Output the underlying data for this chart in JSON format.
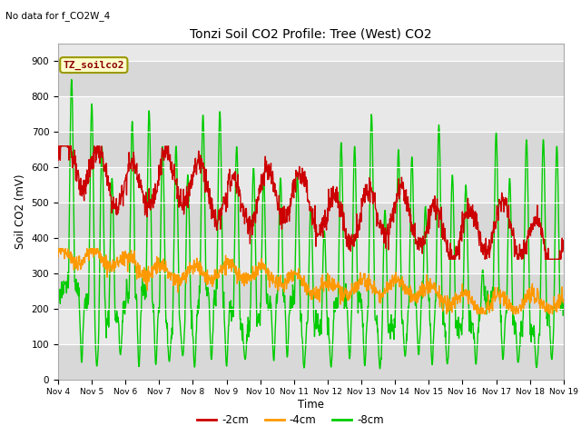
{
  "title": "Tonzi Soil CO2 Profile: Tree (West) CO2",
  "subtitle": "No data for f_CO2W_4",
  "ylabel": "Soil CO2 (mV)",
  "xlabel": "Time",
  "legend_label": "TZ_soilco2",
  "series_labels": [
    "-2cm",
    "-4cm",
    "-8cm"
  ],
  "series_colors": [
    "#cc0000",
    "#ff9900",
    "#00cc00"
  ],
  "ylim": [
    0,
    950
  ],
  "yticks": [
    0,
    100,
    200,
    300,
    400,
    500,
    600,
    700,
    800,
    900
  ],
  "xtick_labels": [
    "Nov 4",
    "Nov 5",
    "Nov 6",
    "Nov 7",
    "Nov 8",
    "Nov 9",
    "Nov 10",
    "Nov 11",
    "Nov 12",
    "Nov 13",
    "Nov 14",
    "Nov 15",
    "Nov 16",
    "Nov 17",
    "Nov 18",
    "Nov 19"
  ],
  "grid_color": "#d0d0d0",
  "plot_bg": "#e8e8e8",
  "fig_bg": "#ffffff",
  "linewidth": 1.0,
  "n_days": 15,
  "pts_per_day": 96
}
